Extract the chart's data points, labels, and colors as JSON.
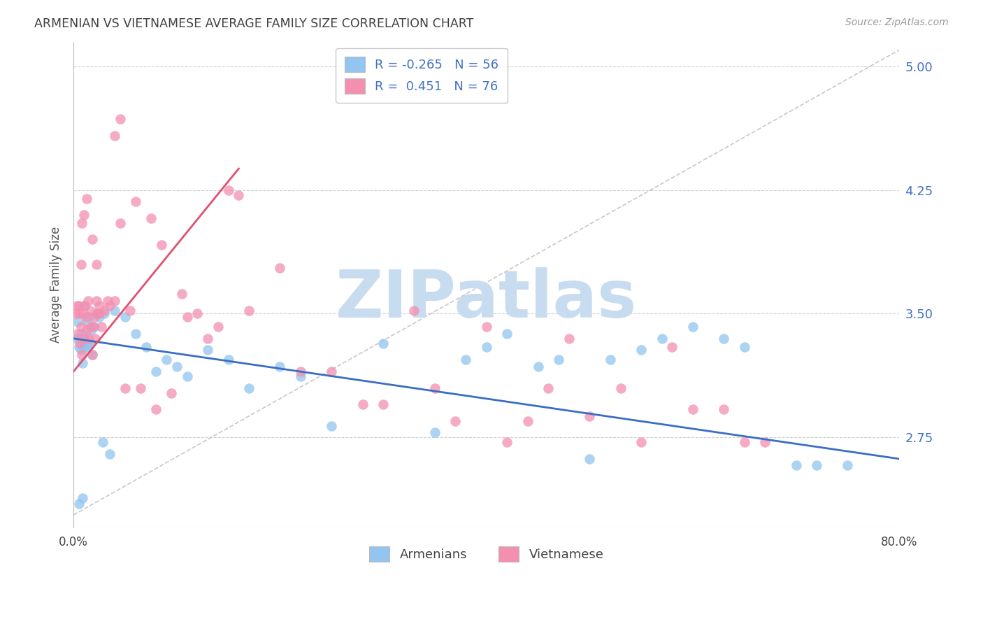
{
  "title": "ARMENIAN VS VIETNAMESE AVERAGE FAMILY SIZE CORRELATION CHART",
  "source": "Source: ZipAtlas.com",
  "ylabel": "Average Family Size",
  "xlim": [
    0.0,
    80.0
  ],
  "ylim": [
    2.2,
    5.15
  ],
  "yticks": [
    2.75,
    3.5,
    4.25,
    5.0
  ],
  "xtick_positions": [
    0,
    10,
    20,
    30,
    40,
    50,
    60,
    70,
    80
  ],
  "xtick_labels": [
    "0.0%",
    "",
    "",
    "",
    "",
    "",
    "",
    "",
    "80.0%"
  ],
  "armenians_R": -0.265,
  "armenians_N": 56,
  "vietnamese_R": 0.451,
  "vietnamese_N": 76,
  "armenians_color": "#92C5F0",
  "vietnamese_color": "#F48FB0",
  "armenians_line_color": "#3A6EC4",
  "vietnamese_line_color": "#E05070",
  "legend_label_armenians": "Armenians",
  "legend_label_vietnamese": "Vietnamese",
  "background_color": "#FFFFFF",
  "grid_color": "#C8C8C8",
  "title_color": "#404040",
  "right_axis_color": "#4472C4",
  "watermark_text": "ZIPatlas",
  "watermark_color": "#C8DCF0",
  "arm_x": [
    0.3,
    0.4,
    0.5,
    0.6,
    0.7,
    0.8,
    0.9,
    1.0,
    1.1,
    1.2,
    1.3,
    1.4,
    1.5,
    1.6,
    1.7,
    1.8,
    2.0,
    2.2,
    2.5,
    3.0,
    4.0,
    5.0,
    6.0,
    7.0,
    8.0,
    9.0,
    10.0,
    11.0,
    13.0,
    15.0,
    17.0,
    20.0,
    22.0,
    25.0,
    30.0,
    35.0,
    38.0,
    40.0,
    42.0,
    45.0,
    47.0,
    50.0,
    52.0,
    55.0,
    57.0,
    60.0,
    63.0,
    65.0,
    70.0,
    72.0,
    75.0,
    3.5,
    2.8,
    1.1,
    0.5,
    0.9
  ],
  "arm_y": [
    3.35,
    3.45,
    3.3,
    3.35,
    3.28,
    3.38,
    3.2,
    3.32,
    3.3,
    3.35,
    3.45,
    3.3,
    3.48,
    3.32,
    3.4,
    3.25,
    3.42,
    3.5,
    3.48,
    3.5,
    3.52,
    3.48,
    3.38,
    3.3,
    3.15,
    3.22,
    3.18,
    3.12,
    3.28,
    3.22,
    3.05,
    3.18,
    3.12,
    2.82,
    3.32,
    2.78,
    3.22,
    3.3,
    3.38,
    3.18,
    3.22,
    2.62,
    3.22,
    3.28,
    3.35,
    3.42,
    3.35,
    3.3,
    2.58,
    2.58,
    2.58,
    2.65,
    2.72,
    3.55,
    2.35,
    2.38
  ],
  "vie_x": [
    0.2,
    0.3,
    0.4,
    0.5,
    0.6,
    0.7,
    0.8,
    0.9,
    1.0,
    1.1,
    1.2,
    1.3,
    1.4,
    1.5,
    1.6,
    1.7,
    1.8,
    1.9,
    2.0,
    2.1,
    2.2,
    2.3,
    2.5,
    2.7,
    3.0,
    3.3,
    4.0,
    4.5,
    5.5,
    6.0,
    7.5,
    8.5,
    10.5,
    12.0,
    14.0,
    16.0,
    1.0,
    0.8,
    0.5,
    0.7,
    1.3,
    1.8,
    2.2,
    2.5,
    3.5,
    4.0,
    4.5,
    5.0,
    6.5,
    8.0,
    9.5,
    11.0,
    13.0,
    15.0,
    17.0,
    20.0,
    22.0,
    25.0,
    28.0,
    30.0,
    33.0,
    35.0,
    37.0,
    40.0,
    42.0,
    44.0,
    46.0,
    48.0,
    50.0,
    53.0,
    55.0,
    58.0,
    60.0,
    63.0,
    65.0,
    67.0
  ],
  "vie_y": [
    3.5,
    3.55,
    3.38,
    3.5,
    3.32,
    3.42,
    3.25,
    3.5,
    3.35,
    3.55,
    3.48,
    3.4,
    3.58,
    3.35,
    3.52,
    3.42,
    3.25,
    3.42,
    3.48,
    3.35,
    3.58,
    3.5,
    3.5,
    3.42,
    3.52,
    3.58,
    3.58,
    4.05,
    3.52,
    4.18,
    4.08,
    3.92,
    3.62,
    3.5,
    3.42,
    4.22,
    4.1,
    4.05,
    3.55,
    3.8,
    4.2,
    3.95,
    3.8,
    3.55,
    3.55,
    4.58,
    4.68,
    3.05,
    3.05,
    2.92,
    3.02,
    3.48,
    3.35,
    4.25,
    3.52,
    3.78,
    3.15,
    3.15,
    2.95,
    2.95,
    3.52,
    3.05,
    2.85,
    3.42,
    2.72,
    2.85,
    3.05,
    3.35,
    2.88,
    3.05,
    2.72,
    3.3,
    2.92,
    2.92,
    2.72,
    2.72
  ],
  "arm_line_x": [
    0,
    80
  ],
  "arm_line_y": [
    3.35,
    2.62
  ],
  "vie_line_x": [
    0,
    16
  ],
  "vie_line_y": [
    3.15,
    4.38
  ],
  "ref_line_x": [
    0,
    80
  ],
  "ref_line_y": [
    2.28,
    5.1
  ]
}
